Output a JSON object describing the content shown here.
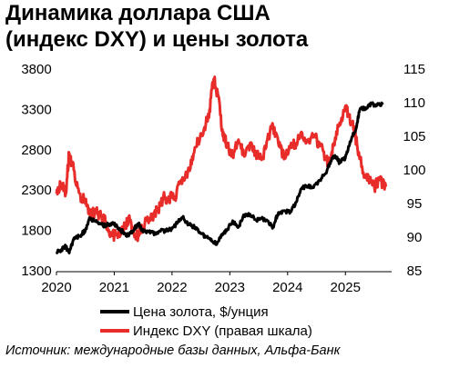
{
  "chart_data": {
    "type": "line",
    "title_lines": [
      "Динамика доллара США",
      "(индекс DXY) и цены золота"
    ],
    "source": "Источник: международные базы данных, Альфа-Банк",
    "x_tick_labels": [
      "2020",
      "2021",
      "2022",
      "2023",
      "2024",
      "2025"
    ],
    "y_left": {
      "ticks": [
        "3800",
        "3300",
        "2800",
        "2300",
        "1800",
        "1300"
      ],
      "range": [
        1300,
        3800
      ]
    },
    "y_right": {
      "ticks": [
        "115",
        "110",
        "105",
        "100",
        "95",
        "90",
        "85"
      ],
      "range": [
        85,
        115
      ]
    },
    "x_range": [
      2020.0,
      2025.8
    ],
    "series": [
      {
        "name": "Цена золота, $/унция",
        "axis": "left",
        "color": "#000000",
        "points": [
          [
            2020.0,
            1530
          ],
          [
            2020.08,
            1560
          ],
          [
            2020.16,
            1600
          ],
          [
            2020.22,
            1520
          ],
          [
            2020.3,
            1700
          ],
          [
            2020.4,
            1730
          ],
          [
            2020.5,
            1800
          ],
          [
            2020.58,
            1950
          ],
          [
            2020.66,
            1920
          ],
          [
            2020.75,
            1880
          ],
          [
            2020.85,
            1860
          ],
          [
            2020.95,
            1890
          ],
          [
            2021.05,
            1850
          ],
          [
            2021.15,
            1780
          ],
          [
            2021.25,
            1730
          ],
          [
            2021.35,
            1830
          ],
          [
            2021.42,
            1880
          ],
          [
            2021.5,
            1780
          ],
          [
            2021.6,
            1790
          ],
          [
            2021.7,
            1760
          ],
          [
            2021.8,
            1790
          ],
          [
            2021.92,
            1800
          ],
          [
            2022.0,
            1820
          ],
          [
            2022.1,
            1900
          ],
          [
            2022.18,
            1960
          ],
          [
            2022.3,
            1870
          ],
          [
            2022.4,
            1840
          ],
          [
            2022.5,
            1760
          ],
          [
            2022.6,
            1720
          ],
          [
            2022.7,
            1660
          ],
          [
            2022.78,
            1640
          ],
          [
            2022.85,
            1740
          ],
          [
            2022.95,
            1810
          ],
          [
            2023.05,
            1920
          ],
          [
            2023.15,
            1840
          ],
          [
            2023.25,
            1990
          ],
          [
            2023.35,
            2000
          ],
          [
            2023.45,
            1930
          ],
          [
            2023.55,
            1950
          ],
          [
            2023.65,
            1920
          ],
          [
            2023.75,
            1840
          ],
          [
            2023.82,
            1990
          ],
          [
            2023.92,
            2040
          ],
          [
            2024.05,
            2030
          ],
          [
            2024.15,
            2150
          ],
          [
            2024.25,
            2330
          ],
          [
            2024.35,
            2350
          ],
          [
            2024.45,
            2330
          ],
          [
            2024.55,
            2420
          ],
          [
            2024.65,
            2500
          ],
          [
            2024.75,
            2660
          ],
          [
            2024.82,
            2730
          ],
          [
            2024.9,
            2640
          ],
          [
            2025.0,
            2700
          ],
          [
            2025.08,
            2900
          ],
          [
            2025.18,
            3050
          ],
          [
            2025.25,
            3300
          ],
          [
            2025.35,
            3320
          ],
          [
            2025.45,
            3370
          ],
          [
            2025.55,
            3350
          ],
          [
            2025.65,
            3360
          ]
        ]
      },
      {
        "name": "Индекс DXY (правая шкала)",
        "axis": "right",
        "color": "#e82c2a",
        "points": [
          [
            2020.0,
            96.5
          ],
          [
            2020.08,
            98.0
          ],
          [
            2020.16,
            96.5
          ],
          [
            2020.22,
            102.5
          ],
          [
            2020.3,
            100.0
          ],
          [
            2020.4,
            96.5
          ],
          [
            2020.5,
            95.0
          ],
          [
            2020.58,
            93.2
          ],
          [
            2020.66,
            93.6
          ],
          [
            2020.75,
            93.5
          ],
          [
            2020.85,
            92.2
          ],
          [
            2020.95,
            90.2
          ],
          [
            2021.05,
            90.5
          ],
          [
            2021.15,
            91.0
          ],
          [
            2021.25,
            93.0
          ],
          [
            2021.35,
            90.0
          ],
          [
            2021.45,
            90.5
          ],
          [
            2021.55,
            92.5
          ],
          [
            2021.65,
            93.0
          ],
          [
            2021.75,
            94.0
          ],
          [
            2021.85,
            96.0
          ],
          [
            2021.95,
            95.7
          ],
          [
            2022.05,
            96.0
          ],
          [
            2022.15,
            98.0
          ],
          [
            2022.25,
            99.0
          ],
          [
            2022.35,
            102.0
          ],
          [
            2022.45,
            104.5
          ],
          [
            2022.55,
            106.0
          ],
          [
            2022.65,
            109.0
          ],
          [
            2022.72,
            113.5
          ],
          [
            2022.8,
            111.0
          ],
          [
            2022.88,
            105.0
          ],
          [
            2022.95,
            104.0
          ],
          [
            2023.05,
            102.0
          ],
          [
            2023.15,
            104.5
          ],
          [
            2023.25,
            102.0
          ],
          [
            2023.35,
            104.0
          ],
          [
            2023.45,
            102.5
          ],
          [
            2023.55,
            101.5
          ],
          [
            2023.65,
            104.5
          ],
          [
            2023.75,
            106.5
          ],
          [
            2023.85,
            103.5
          ],
          [
            2023.95,
            102.0
          ],
          [
            2024.05,
            103.5
          ],
          [
            2024.15,
            104.0
          ],
          [
            2024.25,
            105.5
          ],
          [
            2024.35,
            104.5
          ],
          [
            2024.45,
            105.0
          ],
          [
            2024.55,
            104.0
          ],
          [
            2024.65,
            101.5
          ],
          [
            2024.72,
            101.0
          ],
          [
            2024.8,
            104.0
          ],
          [
            2024.9,
            107.0
          ],
          [
            2025.0,
            109.5
          ],
          [
            2025.05,
            108.0
          ],
          [
            2025.12,
            107.0
          ],
          [
            2025.2,
            104.0
          ],
          [
            2025.3,
            99.5
          ],
          [
            2025.4,
            99.0
          ],
          [
            2025.5,
            97.5
          ],
          [
            2025.6,
            98.5
          ],
          [
            2025.7,
            97.5
          ]
        ]
      }
    ],
    "legend_placement": "bottom-center",
    "grid": false
  }
}
